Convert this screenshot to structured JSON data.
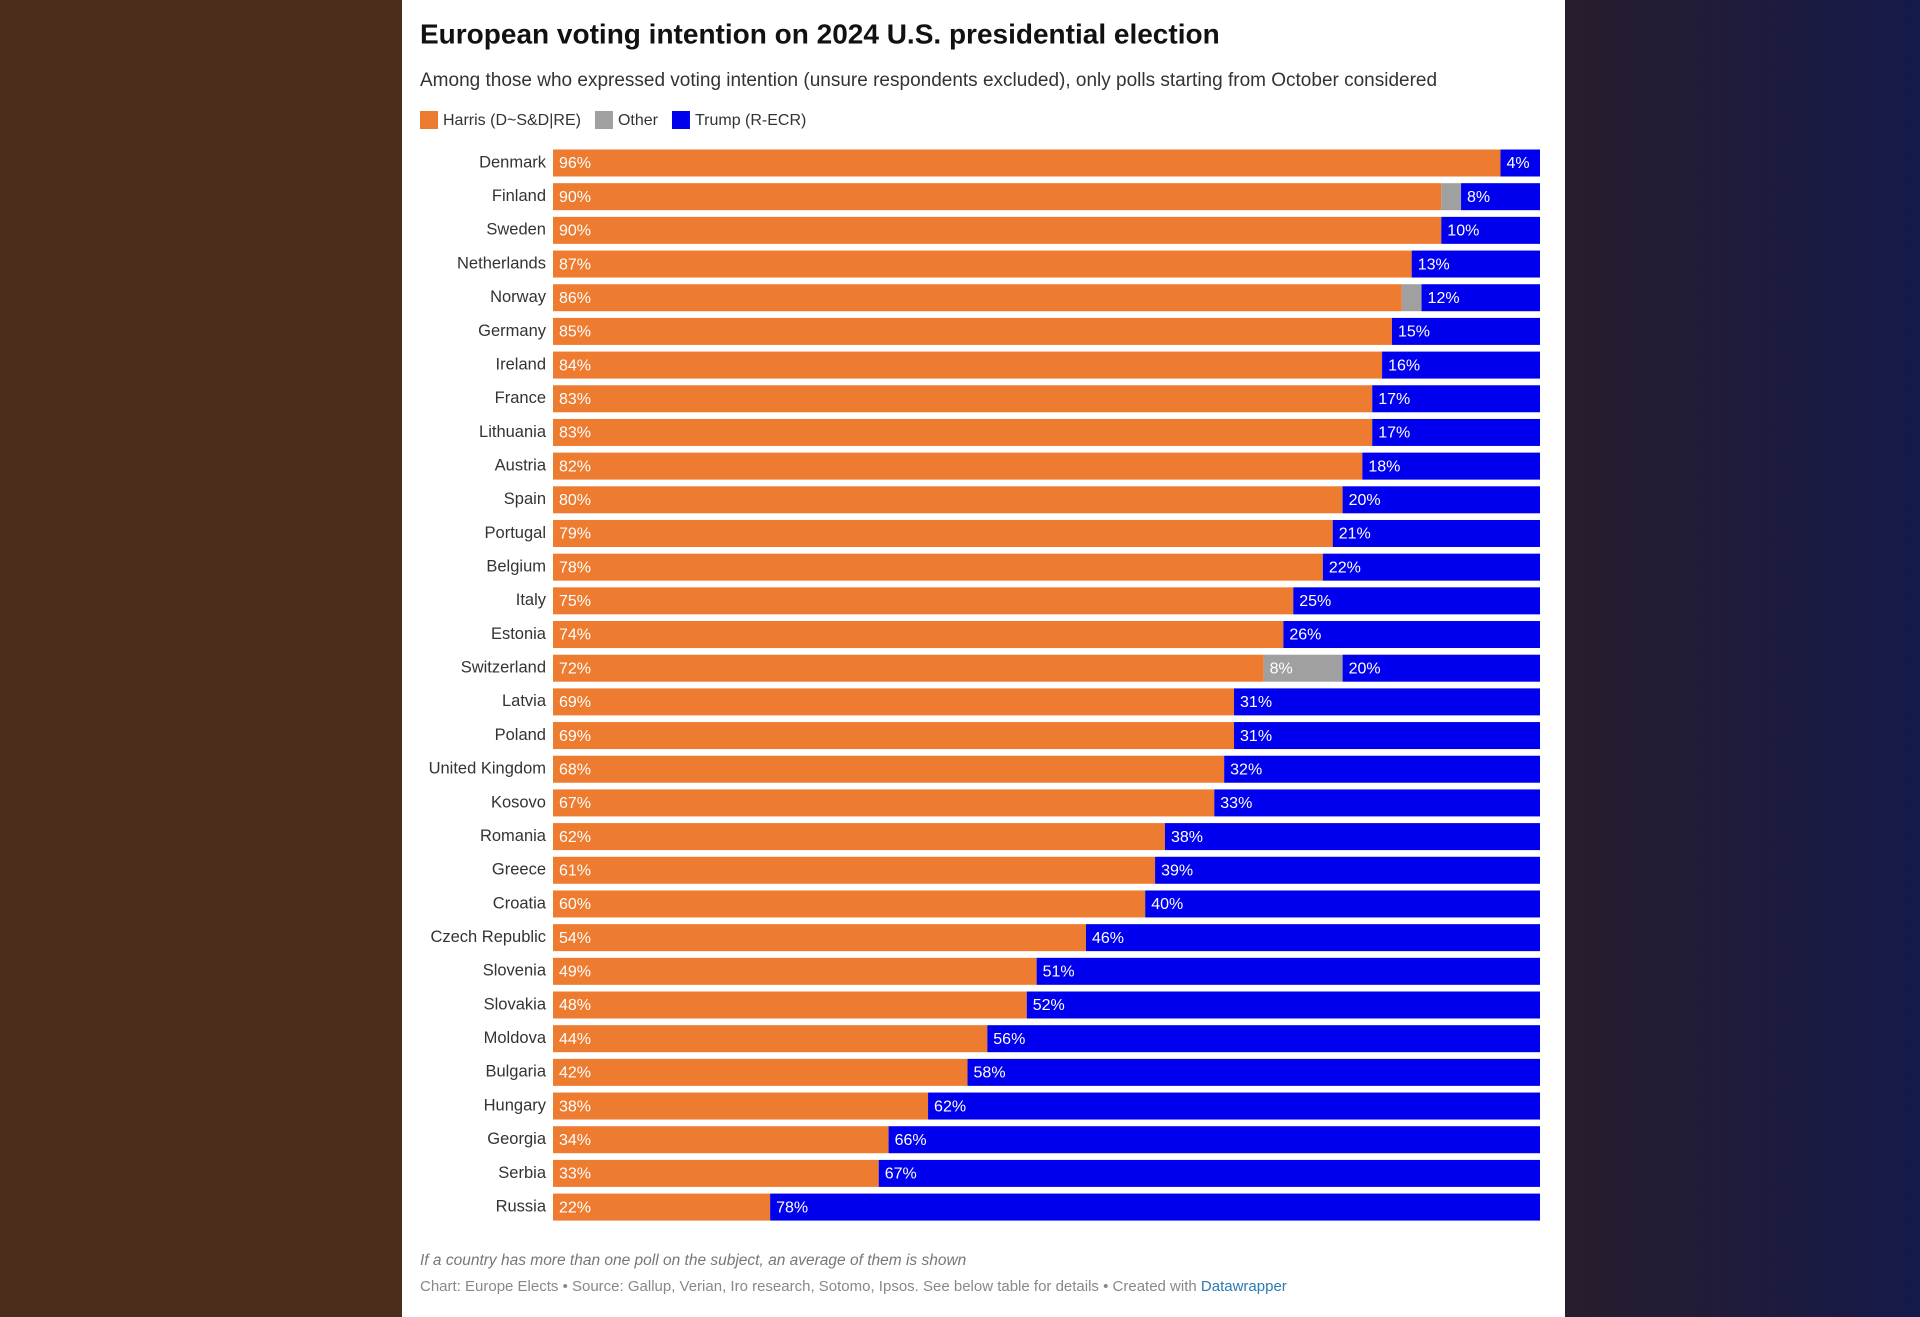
{
  "chart_data": {
    "type": "stacked-bar-horizontal",
    "title": "European voting intention on 2024 U.S. presidential election",
    "subtitle": "Among those who expressed voting intention (unsure respondents excluded), only polls starting from October considered",
    "categories": [
      "Denmark",
      "Finland",
      "Sweden",
      "Netherlands",
      "Norway",
      "Germany",
      "Ireland",
      "France",
      "Lithuania",
      "Austria",
      "Spain",
      "Portugal",
      "Belgium",
      "Italy",
      "Estonia",
      "Switzerland",
      "Latvia",
      "Poland",
      "United Kingdom",
      "Kosovo",
      "Romania",
      "Greece",
      "Croatia",
      "Czech Republic",
      "Slovenia",
      "Slovakia",
      "Moldova",
      "Bulgaria",
      "Hungary",
      "Georgia",
      "Serbia",
      "Russia"
    ],
    "xlim": [
      0,
      100
    ],
    "series": [
      {
        "name": "Harris (D~S&D|RE)",
        "color": "#ed7b30",
        "values": [
          96,
          90,
          90,
          87,
          86,
          85,
          84,
          83,
          83,
          82,
          80,
          79,
          78,
          75,
          74,
          72,
          69,
          69,
          68,
          67,
          62,
          61,
          60,
          54,
          49,
          48,
          44,
          42,
          38,
          34,
          33,
          22
        ],
        "value_labels": [
          "96%",
          "90%",
          "90%",
          "87%",
          "86%",
          "85%",
          "84%",
          "83%",
          "83%",
          "82%",
          "80%",
          "79%",
          "78%",
          "75%",
          "74%",
          "72%",
          "69%",
          "69%",
          "68%",
          "67%",
          "62%",
          "61%",
          "60%",
          "54%",
          "49%",
          "48%",
          "44%",
          "42%",
          "38%",
          "34%",
          "33%",
          "22%"
        ]
      },
      {
        "name": "Other",
        "color": "#a0a0a0",
        "values": [
          0,
          2,
          0,
          0,
          2,
          0,
          0,
          0,
          0,
          0,
          0,
          0,
          0,
          0,
          0,
          8,
          0,
          0,
          0,
          0,
          0,
          0,
          0,
          0,
          0,
          0,
          0,
          0,
          0,
          0,
          0,
          0
        ],
        "value_labels": [
          null,
          null,
          null,
          null,
          null,
          null,
          null,
          null,
          null,
          null,
          null,
          null,
          null,
          null,
          null,
          "8%",
          null,
          null,
          null,
          null,
          null,
          null,
          null,
          null,
          null,
          null,
          null,
          null,
          null,
          null,
          null,
          null
        ]
      },
      {
        "name": "Trump (R-ECR)",
        "color": "#0000ee",
        "values": [
          4,
          8,
          10,
          13,
          12,
          15,
          16,
          17,
          17,
          18,
          20,
          21,
          22,
          25,
          26,
          20,
          31,
          31,
          32,
          33,
          38,
          39,
          40,
          46,
          51,
          52,
          56,
          58,
          62,
          66,
          67,
          78
        ],
        "value_labels": [
          "4%",
          "8%",
          "10%",
          "13%",
          "12%",
          "15%",
          "16%",
          "17%",
          "17%",
          "18%",
          "20%",
          "21%",
          "22%",
          "25%",
          "26%",
          "20%",
          "31%",
          "31%",
          "32%",
          "33%",
          "38%",
          "39%",
          "40%",
          "46%",
          "51%",
          "52%",
          "56%",
          "58%",
          "62%",
          "66%",
          "67%",
          "78%"
        ]
      }
    ],
    "note": "If a country has more than one poll on the subject, an average of them is shown",
    "source": "Chart: Europe Elects • Source: Gallup, Verian, Iro research, Sotomo, Ipsos. See below table for details • Created with",
    "source_link": "Datawrapper"
  }
}
